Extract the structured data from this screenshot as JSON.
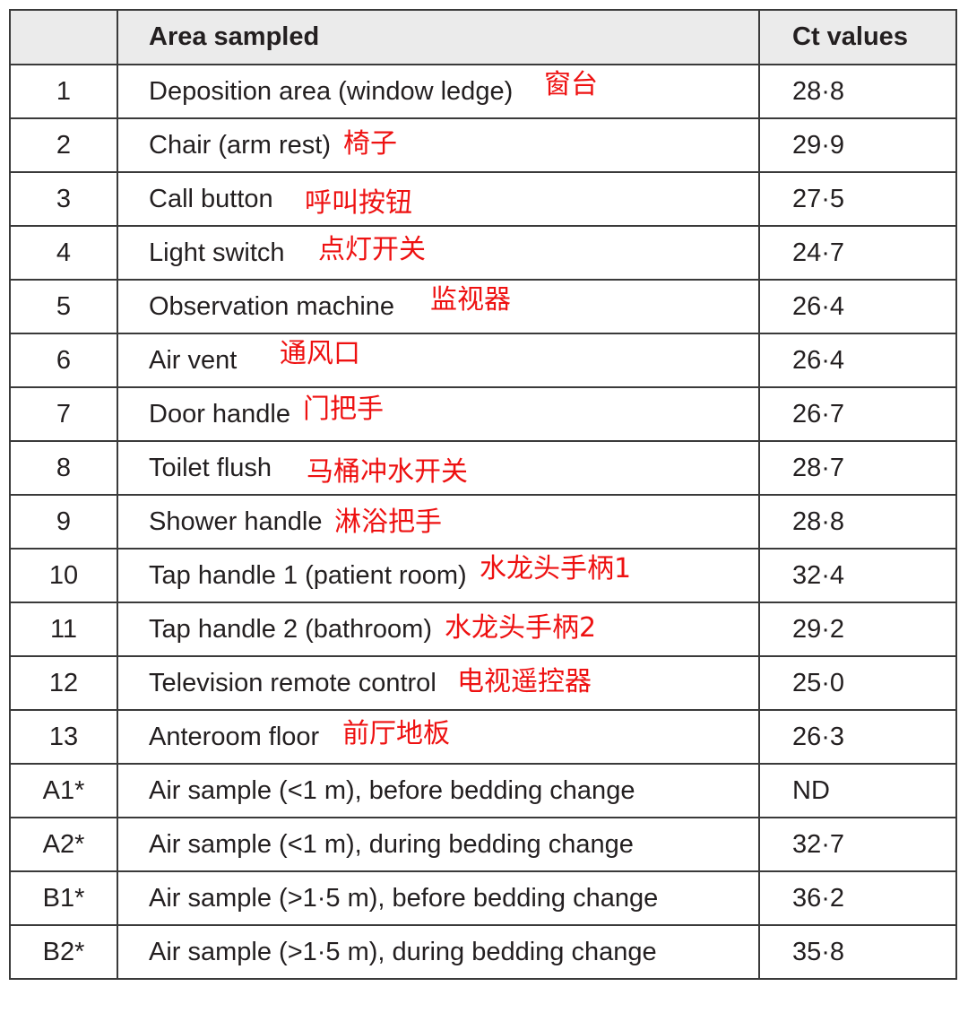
{
  "table": {
    "headers": [
      "",
      "Area sampled",
      "Ct values"
    ],
    "rows": [
      {
        "id": "1",
        "area": "Deposition area (window ledge)",
        "note": "窗台",
        "ct": "28·8"
      },
      {
        "id": "2",
        "area": "Chair (arm rest)",
        "note": "椅子",
        "ct": "29·9"
      },
      {
        "id": "3",
        "area": "Call button",
        "note": "呼叫按钮",
        "ct": "27·5"
      },
      {
        "id": "4",
        "area": "Light switch",
        "note": "点灯开关",
        "ct": "24·7"
      },
      {
        "id": "5",
        "area": "Observation machine",
        "note": "监视器",
        "ct": "26·4"
      },
      {
        "id": "6",
        "area": "Air vent",
        "note": "通风口",
        "ct": "26·4"
      },
      {
        "id": "7",
        "area": "Door handle",
        "note": "门把手",
        "ct": "26·7"
      },
      {
        "id": "8",
        "area": "Toilet flush",
        "note": "马桶冲水开关",
        "ct": "28·7"
      },
      {
        "id": "9",
        "area": "Shower handle",
        "note": "淋浴把手",
        "ct": "28·8"
      },
      {
        "id": "10",
        "area": "Tap handle 1 (patient room)",
        "note": "水龙头手柄1",
        "ct": "32·4"
      },
      {
        "id": "11",
        "area": "Tap handle 2 (bathroom)",
        "note": "水龙头手柄2",
        "ct": "29·2"
      },
      {
        "id": "12",
        "area": "Television remote control",
        "note": "电视遥控器",
        "ct": "25·0"
      },
      {
        "id": "13",
        "area": "Anteroom floor",
        "note": "前厅地板",
        "ct": "26·3"
      },
      {
        "id": "A1*",
        "area": "Air sample (<1 m), before bedding change",
        "note": "",
        "ct": "ND"
      },
      {
        "id": "A2*",
        "area": "Air sample (<1 m), during bedding change",
        "note": "",
        "ct": "32·7"
      },
      {
        "id": "B1*",
        "area": "Air sample (>1·5 m), before bedding change",
        "note": "",
        "ct": "36·2"
      },
      {
        "id": "B2*",
        "area": "Air sample (>1·5 m), during bedding change",
        "note": "",
        "ct": "35·8"
      }
    ]
  },
  "colors": {
    "annotation": "#ee1111",
    "header_bg": "#ebebeb"
  }
}
